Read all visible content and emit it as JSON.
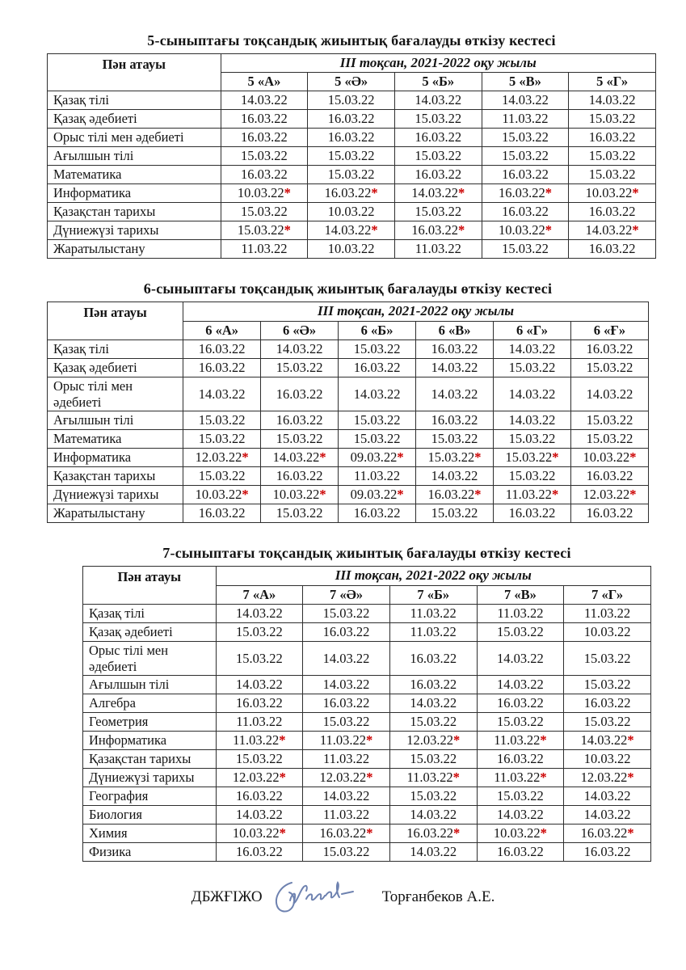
{
  "page": {
    "background": "#ffffff",
    "text_color": "#141414",
    "border_color": "#2e2e2e",
    "asterisk_color": "#cc0000",
    "signature_ink_color": "#6e82b0"
  },
  "tables": [
    {
      "title": "5-сыныптағы тоқсандық жиынтық бағалауды өткізу кестесі",
      "subject_header": "Пән атауы",
      "term_header": "III тоқсан, 2021-2022 оқу жылы",
      "class_headers": [
        "5 «А»",
        "5 «Ә»",
        "5 «Б»",
        "5 «В»",
        "5 «Г»"
      ],
      "rows": [
        {
          "subject": "Қазақ тілі",
          "dates": [
            "14.03.22",
            "15.03.22",
            "14.03.22",
            "14.03.22",
            "14.03.22"
          ]
        },
        {
          "subject": "Қазақ әдебиеті",
          "dates": [
            "16.03.22",
            "16.03.22",
            "15.03.22",
            "11.03.22",
            "15.03.22"
          ]
        },
        {
          "subject": "Орыс тілі мен әдебиеті",
          "dates": [
            "16.03.22",
            "16.03.22",
            "16.03.22",
            "15.03.22",
            "16.03.22"
          ]
        },
        {
          "subject": "Ағылшын тілі",
          "dates": [
            "15.03.22",
            "15.03.22",
            "15.03.22",
            "15.03.22",
            "15.03.22"
          ]
        },
        {
          "subject": "Математика",
          "dates": [
            "16.03.22",
            "15.03.22",
            "16.03.22",
            "16.03.22",
            "15.03.22"
          ]
        },
        {
          "subject": "Информатика",
          "dates": [
            "10.03.22*",
            "16.03.22*",
            "14.03.22*",
            "16.03.22*",
            "10.03.22*"
          ]
        },
        {
          "subject": "Қазақстан тарихы",
          "dates": [
            "15.03.22",
            "10.03.22",
            "15.03.22",
            "16.03.22",
            "16.03.22"
          ]
        },
        {
          "subject": "Дүниежүзі тарихы",
          "dates": [
            "15.03.22*",
            "14.03.22*",
            "16.03.22*",
            "10.03.22*",
            "14.03.22*"
          ]
        },
        {
          "subject": "Жаратылыстану",
          "dates": [
            "11.03.22",
            "10.03.22",
            "11.03.22",
            "15.03.22",
            "16.03.22"
          ]
        }
      ]
    },
    {
      "title": "6-сыныптағы тоқсандық жиынтық бағалауды өткізу кестесі",
      "subject_header": "Пән атауы",
      "term_header": "III тоқсан, 2021-2022 оқу жылы",
      "class_headers": [
        "6 «А»",
        "6 «Ә»",
        "6 «Б»",
        "6 «В»",
        "6 «Г»",
        "6 «Ғ»"
      ],
      "rows": [
        {
          "subject": "Қазақ тілі",
          "dates": [
            "16.03.22",
            "14.03.22",
            "15.03.22",
            "16.03.22",
            "14.03.22",
            "16.03.22"
          ]
        },
        {
          "subject": "Қазақ әдебиеті",
          "dates": [
            "16.03.22",
            "15.03.22",
            "16.03.22",
            "14.03.22",
            "15.03.22",
            "15.03.22"
          ]
        },
        {
          "subject": "Орыс тілі мен әдебиеті",
          "dates": [
            "14.03.22",
            "16.03.22",
            "14.03.22",
            "14.03.22",
            "14.03.22",
            "14.03.22"
          ]
        },
        {
          "subject": "Ағылшын тілі",
          "dates": [
            "15.03.22",
            "16.03.22",
            "15.03.22",
            "16.03.22",
            "14.03.22",
            "15.03.22"
          ]
        },
        {
          "subject": "Математика",
          "dates": [
            "15.03.22",
            "15.03.22",
            "15.03.22",
            "15.03.22",
            "15.03.22",
            "15.03.22"
          ]
        },
        {
          "subject": "Информатика",
          "dates": [
            "12.03.22*",
            "14.03.22*",
            "09.03.22*",
            "15.03.22*",
            "15.03.22*",
            "10.03.22*"
          ]
        },
        {
          "subject": "Қазақстан тарихы",
          "dates": [
            "15.03.22",
            "16.03.22",
            "11.03.22",
            "14.03.22",
            "15.03.22",
            "16.03.22"
          ]
        },
        {
          "subject": "Дүниежүзі тарихы",
          "dates": [
            "10.03.22*",
            "10.03.22*",
            "09.03.22*",
            "16.03.22*",
            "11.03.22*",
            "12.03.22*"
          ]
        },
        {
          "subject": "Жаратылыстану",
          "dates": [
            "16.03.22",
            "15.03.22",
            "16.03.22",
            "15.03.22",
            "16.03.22",
            "16.03.22"
          ]
        }
      ]
    },
    {
      "title": "7-сыныптағы тоқсандық жиынтық бағалауды өткізу кестесі",
      "subject_header": "Пән атауы",
      "term_header": "III тоқсан, 2021-2022 оқу жылы",
      "class_headers": [
        "7 «А»",
        "7 «Ә»",
        "7 «Б»",
        "7 «В»",
        "7 «Г»"
      ],
      "rows": [
        {
          "subject": "Қазақ тілі",
          "dates": [
            "14.03.22",
            "15.03.22",
            "11.03.22",
            "11.03.22",
            "11.03.22"
          ]
        },
        {
          "subject": "Қазақ әдебиеті",
          "dates": [
            "15.03.22",
            "16.03.22",
            "11.03.22",
            "15.03.22",
            "10.03.22"
          ]
        },
        {
          "subject": "Орыс тілі мен әдебиеті",
          "dates": [
            "15.03.22",
            "14.03.22",
            "16.03.22",
            "14.03.22",
            "15.03.22"
          ]
        },
        {
          "subject": "Ағылшын тілі",
          "dates": [
            "14.03.22",
            "14.03.22",
            "16.03.22",
            "14.03.22",
            "15.03.22"
          ]
        },
        {
          "subject": "Алгебра",
          "dates": [
            "16.03.22",
            "16.03.22",
            "14.03.22",
            "16.03.22",
            "16.03.22"
          ]
        },
        {
          "subject": "Геометрия",
          "dates": [
            "11.03.22",
            "15.03.22",
            "15.03.22",
            "15.03.22",
            "15.03.22"
          ]
        },
        {
          "subject": "Информатика",
          "dates": [
            "11.03.22*",
            "11.03.22*",
            "12.03.22*",
            "11.03.22*",
            "14.03.22*"
          ]
        },
        {
          "subject": "Қазақстан тарихы",
          "dates": [
            "15.03.22",
            "11.03.22",
            "15.03.22",
            "16.03.22",
            "10.03.22"
          ]
        },
        {
          "subject": "Дүниежүзі тарихы",
          "dates": [
            "12.03.22*",
            "12.03.22*",
            "11.03.22*",
            "11.03.22*",
            "12.03.22*"
          ]
        },
        {
          "subject": "География",
          "dates": [
            "16.03.22",
            "14.03.22",
            "15.03.22",
            "15.03.22",
            "14.03.22"
          ]
        },
        {
          "subject": "Биология",
          "dates": [
            "14.03.22",
            "11.03.22",
            "14.03.22",
            "14.03.22",
            "14.03.22"
          ]
        },
        {
          "subject": "Химия",
          "dates": [
            "10.03.22*",
            "16.03.22*",
            "16.03.22*",
            "10.03.22*",
            "16.03.22*"
          ]
        },
        {
          "subject": "Физика",
          "dates": [
            "16.03.22",
            "15.03.22",
            "14.03.22",
            "16.03.22",
            "16.03.22"
          ]
        }
      ]
    }
  ],
  "footer": {
    "position_label": "ДБЖҒІЖО",
    "signer_name": "Торғанбеков А.Е.",
    "signature_icon": "handwritten-signature"
  }
}
